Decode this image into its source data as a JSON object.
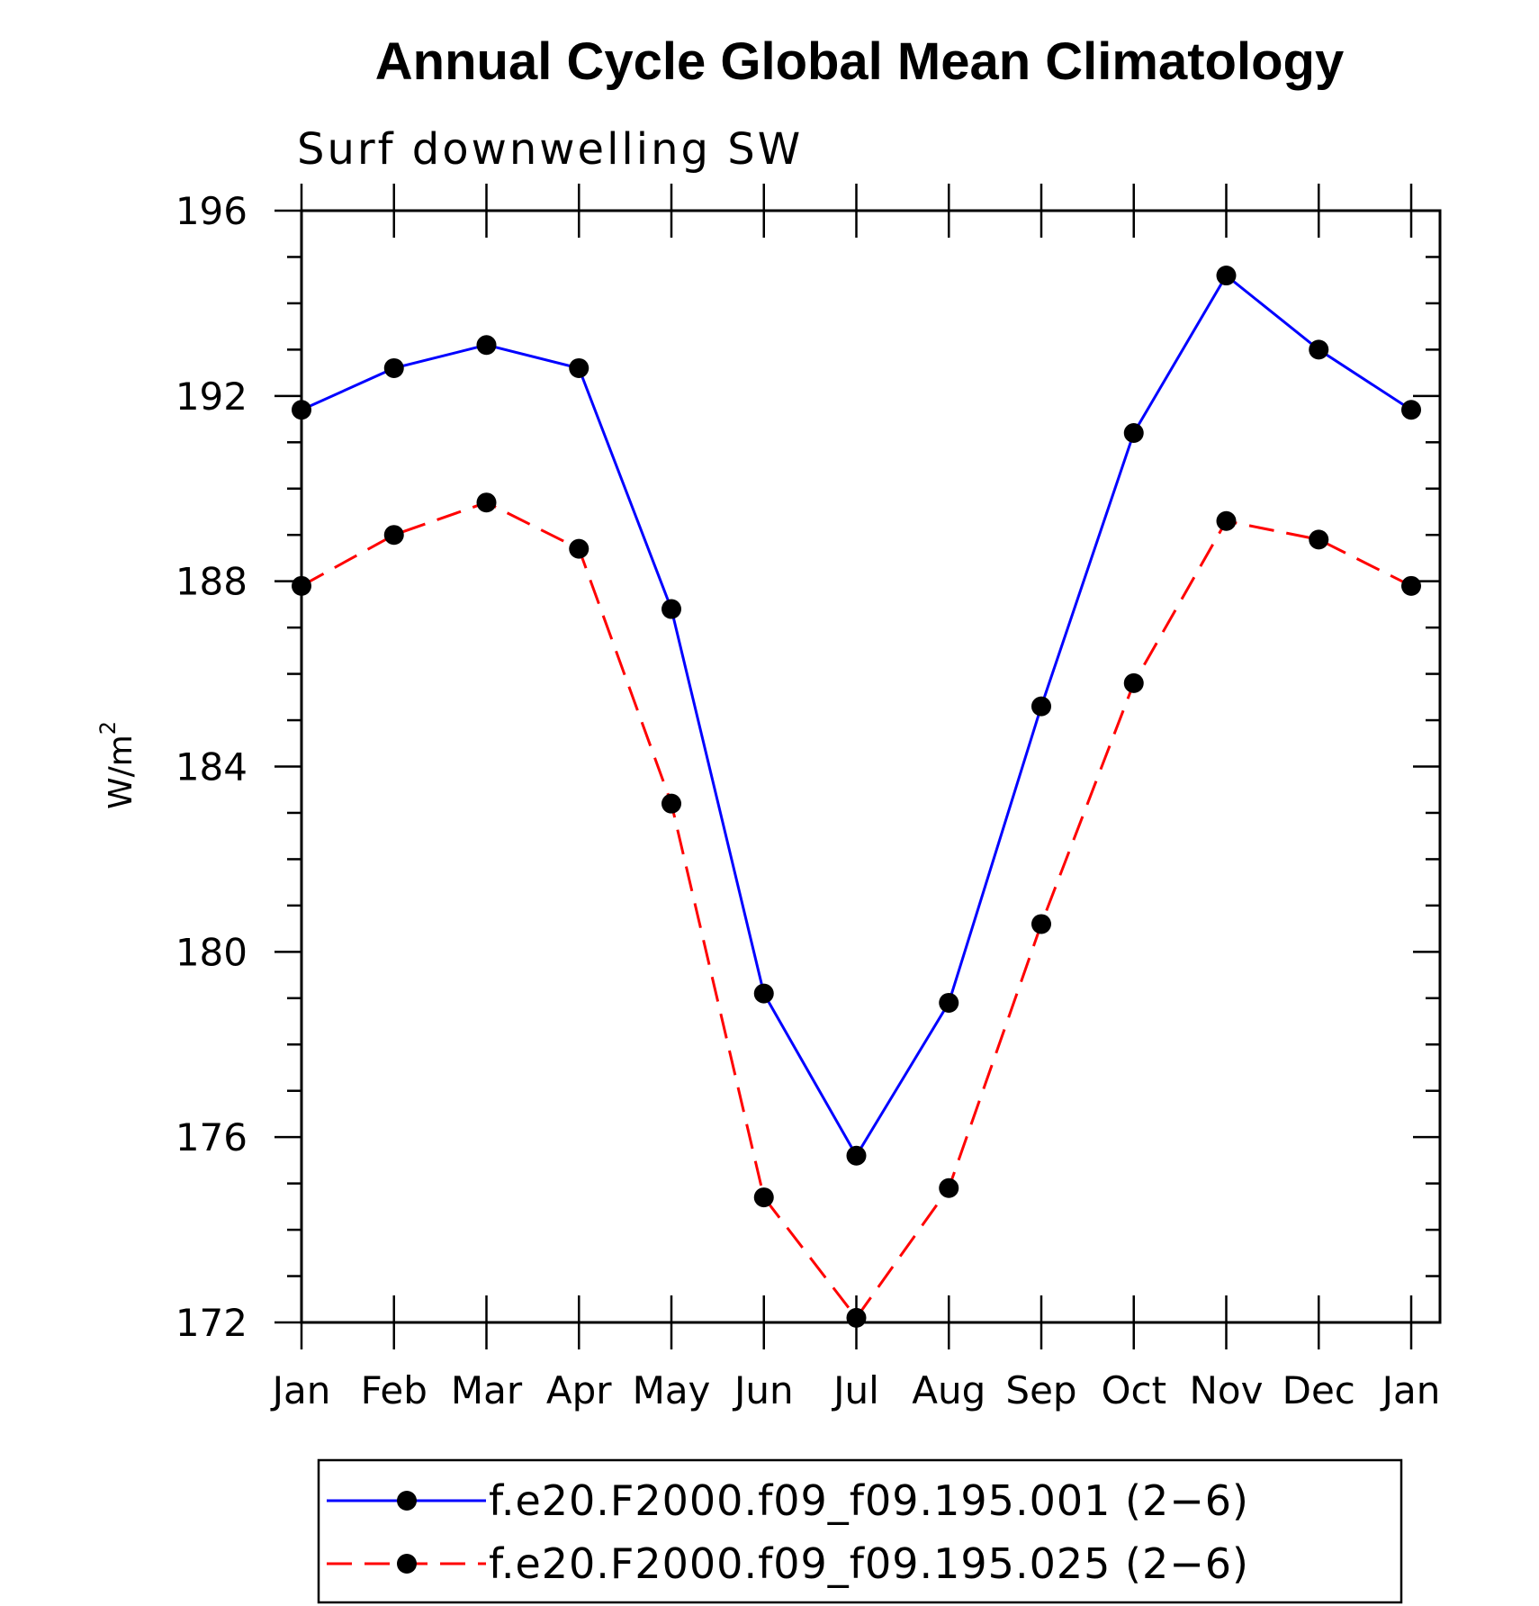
{
  "chart_data": {
    "type": "line",
    "title": "Annual Cycle Global Mean Climatology",
    "subtitle": "Surf downwelling SW",
    "ylabel_base": "W/m",
    "ylabel_sup": "2",
    "xlabel": "",
    "categories": [
      "Jan",
      "Feb",
      "Mar",
      "Apr",
      "May",
      "Jun",
      "Jul",
      "Aug",
      "Sep",
      "Oct",
      "Nov",
      "Dec",
      "Jan"
    ],
    "ylim": [
      172,
      196
    ],
    "yticks": [
      172,
      176,
      180,
      184,
      188,
      192,
      196
    ],
    "y_minor_step": 1,
    "grid": false,
    "legend_position": "bottom",
    "series": [
      {
        "name": "f.e20.F2000.f09_f09.195.001 (2−6)",
        "color": "#0000ff",
        "dash": "solid",
        "marker": "circle",
        "values": [
          191.7,
          192.6,
          193.1,
          192.6,
          187.4,
          179.1,
          175.6,
          178.9,
          185.3,
          191.2,
          194.6,
          193.0,
          191.7
        ]
      },
      {
        "name": "f.e20.F2000.f09_f09.195.025 (2−6)",
        "color": "#ff0000",
        "dash": "dashed",
        "marker": "circle",
        "values": [
          187.9,
          189.0,
          189.7,
          188.7,
          183.2,
          174.7,
          172.1,
          174.9,
          180.6,
          185.8,
          189.3,
          188.9,
          187.9
        ]
      }
    ]
  }
}
